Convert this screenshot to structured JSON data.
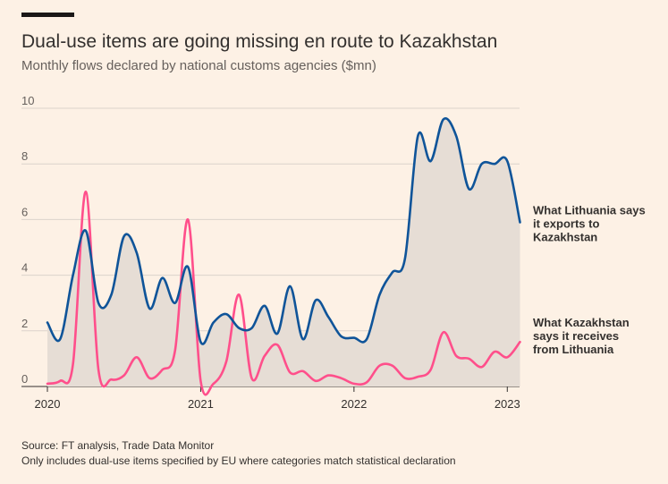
{
  "header": {
    "title": "Dual-use items are going missing en route to Kazakhstan",
    "subtitle": "Monthly flows declared by national customs agencies ($mn)"
  },
  "footer": {
    "source": "Source: FT analysis, Trade Data Monitor",
    "note": "Only includes dual-use items specified by EU where categories match statistical declaration"
  },
  "colors": {
    "background": "#FDF1E5",
    "exports_line": "#0F5499",
    "receives_line": "#FF4F8B",
    "fill": "#E6DDD5",
    "grid": "#DCD3CB"
  },
  "chart_data": {
    "type": "line",
    "title": "Dual-use items are going missing en route to Kazakhstan",
    "ylabel": "$mn",
    "ylim": [
      0,
      10
    ],
    "yticks": [
      "0",
      "2",
      "4",
      "6",
      "8",
      "10"
    ],
    "xlim": [
      2020.0,
      2023.08
    ],
    "xticks": [
      "2020",
      "2021",
      "2022",
      "2023"
    ],
    "series": [
      {
        "name": "What Lithuania says it exports to Kazakhstan",
        "label_lines": [
          "What Lithuania says",
          "it exports to",
          "Kazakhstan"
        ],
        "color": "#0F5499",
        "x": [
          2020.0,
          2020.083,
          2020.167,
          2020.25,
          2020.333,
          2020.417,
          2020.5,
          2020.583,
          2020.667,
          2020.75,
          2020.833,
          2020.917,
          2021.0,
          2021.083,
          2021.167,
          2021.25,
          2021.333,
          2021.417,
          2021.5,
          2021.583,
          2021.667,
          2021.75,
          2021.833,
          2021.917,
          2022.0,
          2022.083,
          2022.167,
          2022.25,
          2022.333,
          2022.417,
          2022.5,
          2022.583,
          2022.667,
          2022.75,
          2022.833,
          2022.917,
          2023.0,
          2023.083
        ],
        "values": [
          2.3,
          1.7,
          4.0,
          5.6,
          3.0,
          3.3,
          5.4,
          4.8,
          2.8,
          3.9,
          3.0,
          4.3,
          1.6,
          2.3,
          2.6,
          2.1,
          2.1,
          2.9,
          1.9,
          3.6,
          1.7,
          3.1,
          2.5,
          1.8,
          1.75,
          1.7,
          3.3,
          4.1,
          4.6,
          9.0,
          8.1,
          9.6,
          9.0,
          7.1,
          8.0,
          8.0,
          8.1,
          5.9
        ]
      },
      {
        "name": "What Kazakhstan says it receives from Lithuania",
        "label_lines": [
          "What Kazakhstan",
          "says it receives",
          "from Lithuania"
        ],
        "color": "#FF4F8B",
        "x": [
          2020.0,
          2020.083,
          2020.167,
          2020.25,
          2020.333,
          2020.417,
          2020.5,
          2020.583,
          2020.667,
          2020.75,
          2020.833,
          2020.917,
          2021.0,
          2021.083,
          2021.167,
          2021.25,
          2021.333,
          2021.417,
          2021.5,
          2021.583,
          2021.667,
          2021.75,
          2021.833,
          2021.917,
          2022.0,
          2022.083,
          2022.167,
          2022.25,
          2022.333,
          2022.417,
          2022.5,
          2022.583,
          2022.667,
          2022.75,
          2022.833,
          2022.917,
          2023.0,
          2023.083
        ],
        "values": [
          0.1,
          0.2,
          0.8,
          7.0,
          0.6,
          0.25,
          0.4,
          1.05,
          0.3,
          0.6,
          1.3,
          6.0,
          0.2,
          0.1,
          0.9,
          3.3,
          0.3,
          1.1,
          1.5,
          0.5,
          0.55,
          0.2,
          0.4,
          0.3,
          0.1,
          0.15,
          0.75,
          0.75,
          0.3,
          0.35,
          0.6,
          1.95,
          1.1,
          1.0,
          0.7,
          1.25,
          1.05,
          1.6
        ]
      }
    ]
  }
}
